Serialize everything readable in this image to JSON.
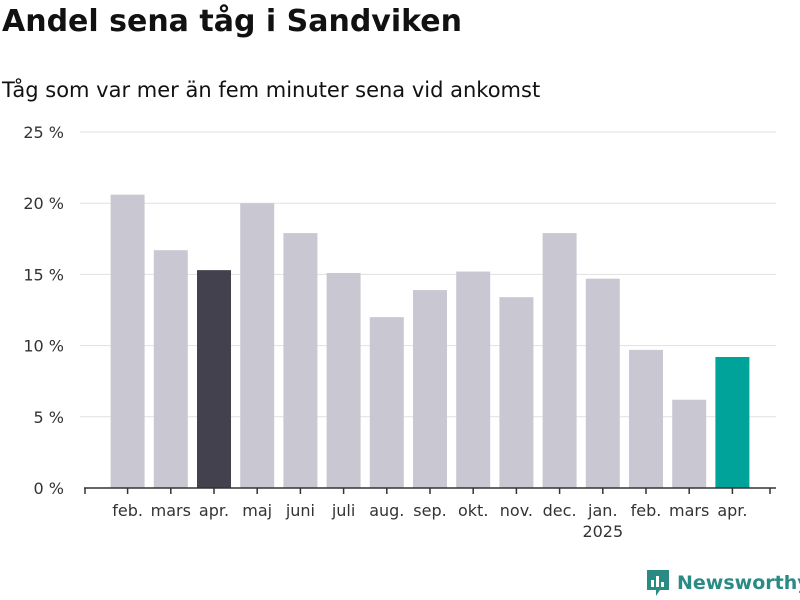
{
  "header": {
    "title": "Andel sena tåg i Sandviken",
    "subtitle": "Tåg som var mer än fem minuter sena vid ankomst"
  },
  "brand": {
    "name": "Newsworthy",
    "icon": "newsworthy-logo-icon"
  },
  "colors": {
    "bar_default": "#c9c7d1",
    "bar_highlight_previous": "#43414e",
    "bar_highlight_current": "#00a39a",
    "gridline": "#e1e1e1",
    "axis": "#333333",
    "brand": "#2a8a84"
  },
  "chart_data": {
    "type": "bar",
    "categories": [
      "feb.",
      "mars",
      "apr.",
      "maj",
      "juni",
      "juli",
      "aug.",
      "sep.",
      "okt.",
      "nov.",
      "dec.",
      "jan.",
      "feb.",
      "mars",
      "apr."
    ],
    "year_labels": [
      {
        "index": 11,
        "label": "2025"
      }
    ],
    "values": [
      20.6,
      16.7,
      15.3,
      20.0,
      17.9,
      15.1,
      12.0,
      13.9,
      15.2,
      13.4,
      17.9,
      14.7,
      9.7,
      6.2,
      9.2
    ],
    "highlight": {
      "2": "bar_highlight_previous",
      "14": "bar_highlight_current"
    },
    "ylim": [
      0,
      25
    ],
    "yticks": [
      0,
      5,
      10,
      15,
      20,
      25
    ],
    "ytick_labels": [
      "0 %",
      "5 %",
      "10 %",
      "15 %",
      "20 %",
      "25 %"
    ],
    "grid": true,
    "legend": "none"
  }
}
